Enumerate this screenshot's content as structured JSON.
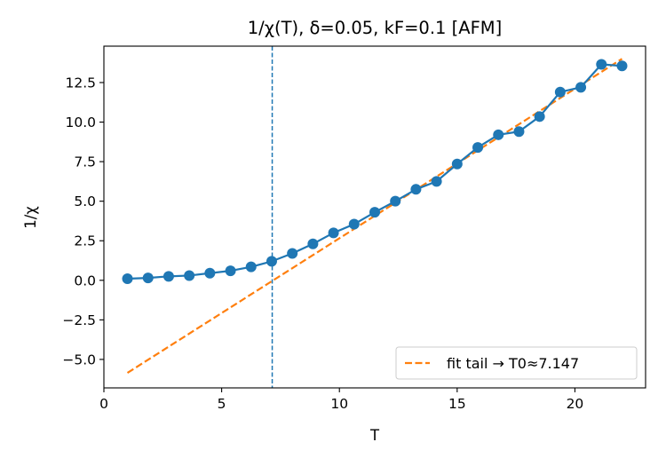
{
  "chart_data": {
    "type": "line",
    "title": "1/χ(T), δ=0.05, kF=0.1  [AFM]",
    "xlabel": "T",
    "ylabel": "1/χ",
    "xlim": [
      0,
      23
    ],
    "ylim": [
      -6.8,
      14.8
    ],
    "xticks": [
      0,
      5,
      10,
      15,
      20
    ],
    "yticks": [
      -5.0,
      -2.5,
      0.0,
      2.5,
      5.0,
      7.5,
      10.0,
      12.5
    ],
    "xtick_labels": [
      "0",
      "5",
      "10",
      "15",
      "20"
    ],
    "ytick_labels": [
      "−5.0",
      "−2.5",
      "0.0",
      "2.5",
      "5.0",
      "7.5",
      "10.0",
      "12.5"
    ],
    "grid": false,
    "legend": {
      "placement": "lower-right",
      "entries": [
        "fit tail → T0≈7.147"
      ]
    },
    "series": [
      {
        "color": "#1f77b4",
        "marker": "circle",
        "x": [
          1.0,
          1.875,
          2.75,
          3.625,
          4.5,
          5.375,
          6.25,
          7.125,
          8.0,
          8.875,
          9.75,
          10.625,
          11.5,
          12.375,
          13.25,
          14.125,
          15.0,
          15.875,
          16.75,
          17.625,
          18.5,
          19.375,
          20.25,
          21.125,
          22.0
        ],
        "y": [
          0.1,
          0.15,
          0.25,
          0.3,
          0.45,
          0.6,
          0.85,
          1.2,
          1.7,
          2.3,
          3.0,
          3.55,
          4.3,
          5.0,
          5.75,
          6.25,
          7.35,
          8.4,
          9.2,
          9.4,
          10.35,
          11.9,
          12.2,
          13.65,
          13.55
        ]
      },
      {
        "name": "fit tail → T0≈7.147",
        "color": "#ff7f0e",
        "style": "dashed",
        "x": [
          1.0,
          22.0
        ],
        "y": [
          -5.85,
          14.0
        ]
      }
    ],
    "annotations": [
      {
        "type": "vline",
        "x": 7.147,
        "color": "#1f77b4",
        "style": "dashed"
      }
    ]
  }
}
